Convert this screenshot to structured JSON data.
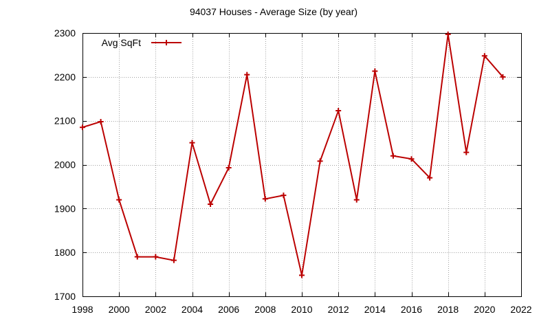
{
  "chart_data": {
    "type": "line",
    "title": "94037 Houses - Average Size (by year)",
    "xlabel": "",
    "ylabel": "",
    "xlim": [
      1998,
      2022
    ],
    "ylim": [
      1700,
      2300
    ],
    "x_ticks": [
      1998,
      2000,
      2002,
      2004,
      2006,
      2008,
      2010,
      2012,
      2014,
      2016,
      2018,
      2020,
      2022
    ],
    "y_ticks": [
      1700,
      1800,
      1900,
      2000,
      2100,
      2200,
      2300
    ],
    "x_tick_labels": [
      "1998",
      "2000",
      "2002",
      "2004",
      "2006",
      "2008",
      "2010",
      "2012",
      "2014",
      "2016",
      "2018",
      "2020",
      "2022"
    ],
    "y_tick_labels": [
      "1700",
      "1800",
      "1900",
      "2000",
      "2100",
      "2200",
      "2300"
    ],
    "grid": true,
    "legend_position": "top-left",
    "series": [
      {
        "name": "Avg SqFt",
        "color": "#bb0000",
        "marker": "plus",
        "x": [
          1998,
          1999,
          2000,
          2001,
          2002,
          2003,
          2004,
          2005,
          2006,
          2007,
          2008,
          2009,
          2010,
          2011,
          2012,
          2013,
          2014,
          2015,
          2016,
          2017,
          2018,
          2019,
          2020,
          2021
        ],
        "y": [
          2085,
          2098,
          1920,
          1790,
          1790,
          1782,
          2050,
          1910,
          1993,
          2205,
          1922,
          1930,
          1748,
          2008,
          2123,
          1920,
          2213,
          2020,
          2013,
          1970,
          2297,
          2028,
          2248,
          2200
        ]
      }
    ]
  }
}
